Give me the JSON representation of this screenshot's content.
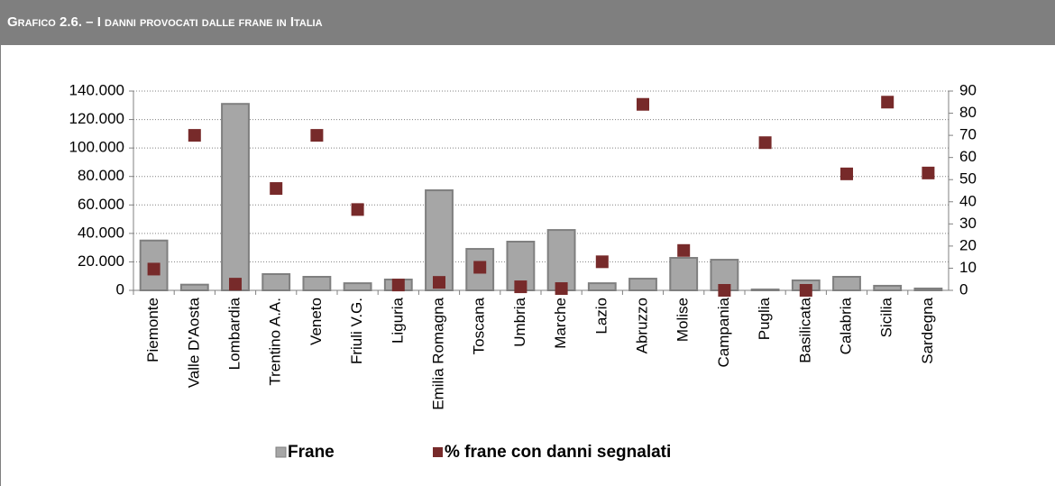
{
  "chart_data": {
    "type": "bar",
    "title": "Grafico 2.6. – I danni provocati dalle frane in Italia",
    "categories": [
      "Piemonte",
      "Valle D'Aosta",
      "Lombardia",
      "Trentino A.A.",
      "Veneto",
      "Friuli V.G.",
      "Liguria",
      "Emilia Romagna",
      "Toscana",
      "Umbria",
      "Marche",
      "Lazio",
      "Abruzzo",
      "Molise",
      "Campania",
      "Puglia",
      "Basilicata",
      "Calabria",
      "Sicilia",
      "Sardegna"
    ],
    "series": [
      {
        "name": "Frane",
        "type": "bar",
        "axis": "y",
        "color": "#a6a6a6",
        "values": [
          35000,
          4000,
          131000,
          11400,
          9500,
          5000,
          7600,
          70300,
          29100,
          34200,
          42400,
          5000,
          8200,
          22800,
          21500,
          600,
          7000,
          9500,
          3200,
          1300
        ]
      },
      {
        "name": "% frane con danni segnalati",
        "type": "scatter",
        "axis": "y2",
        "color": "#772a2a",
        "values": [
          9.6,
          70,
          2.8,
          46,
          70,
          36.5,
          2.4,
          3.6,
          10.4,
          1.6,
          0.8,
          12.9,
          84,
          18,
          0,
          66.7,
          0,
          52.6,
          85,
          53
        ]
      }
    ],
    "ylim": [
      0,
      140000
    ],
    "yticks": [
      0,
      {
        "value": 20000,
        "label": "20.000"
      },
      {
        "value": 40000,
        "label": "40.000"
      },
      {
        "value": 60000,
        "label": "60.000"
      },
      {
        "value": 80000,
        "label": "80.000"
      },
      {
        "value": 100000,
        "label": "100.000"
      },
      {
        "value": 120000,
        "label": "120.000"
      },
      {
        "value": 140000,
        "label": "140.000"
      }
    ],
    "y2lim": [
      0,
      90
    ],
    "y2ticks": [
      0,
      10,
      20,
      30,
      40,
      50,
      60,
      70,
      80,
      90
    ],
    "grid": true
  }
}
